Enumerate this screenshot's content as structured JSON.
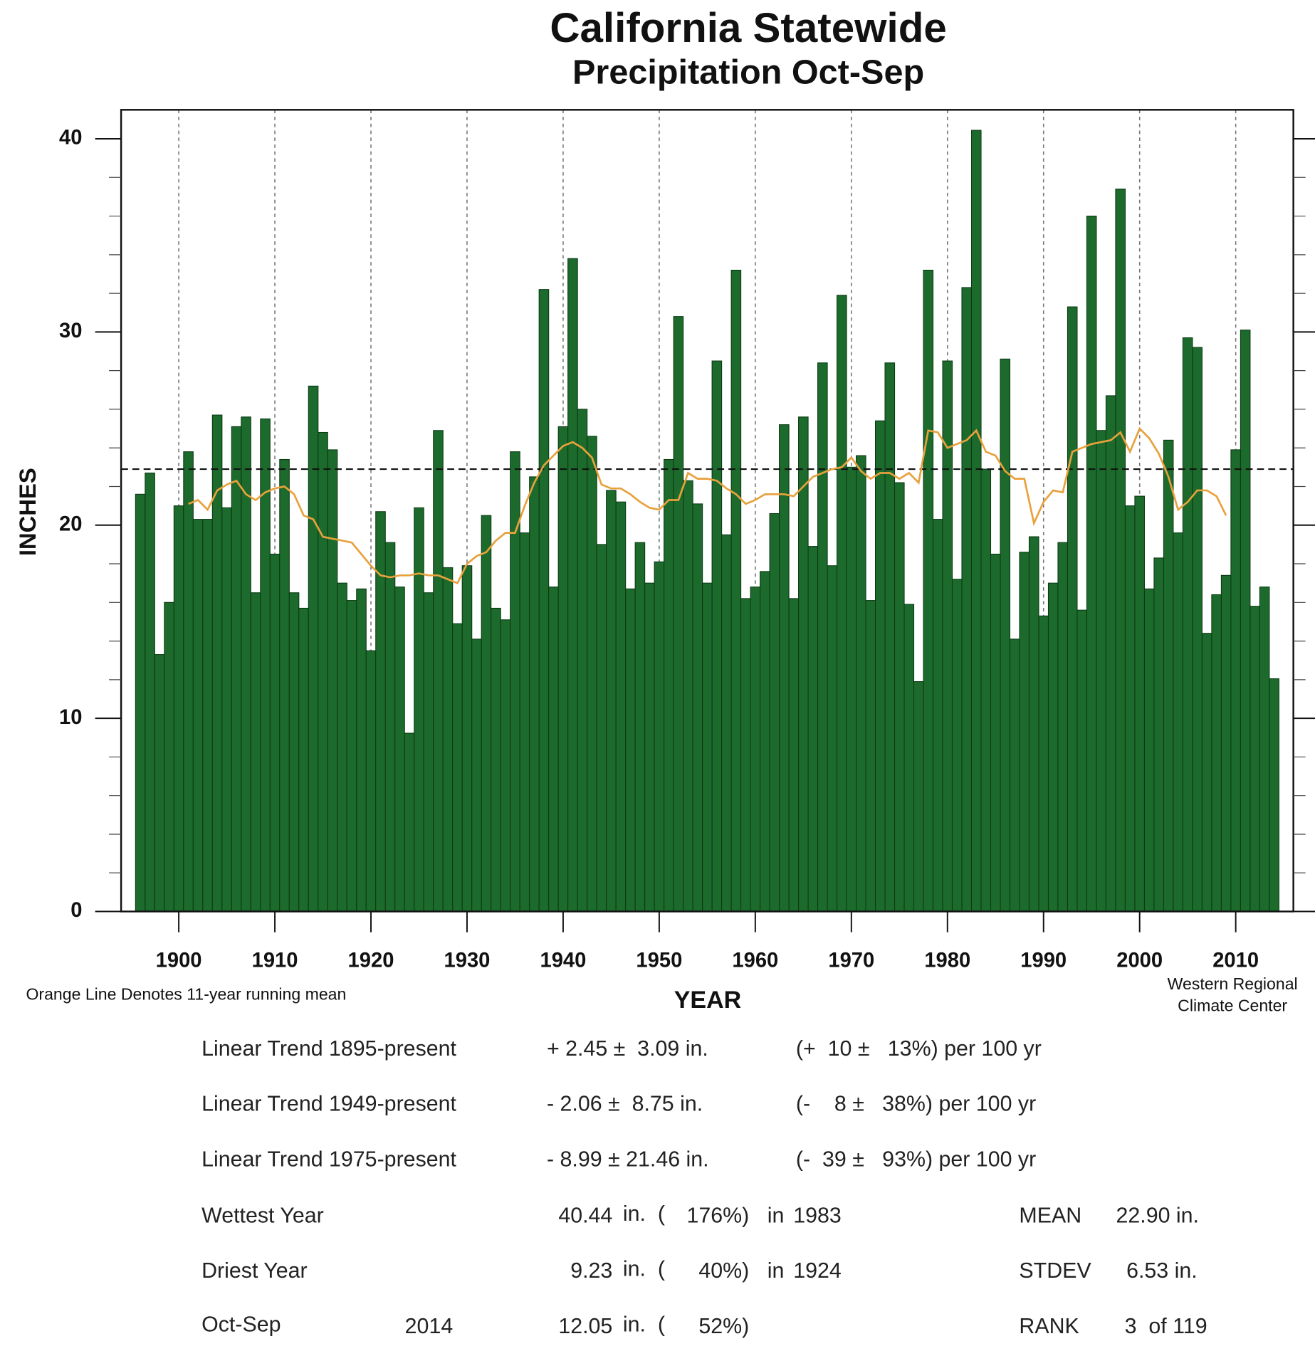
{
  "chart_data": {
    "type": "bar",
    "title": "California Statewide",
    "subtitle": "Precipitation  Oct-Sep",
    "ylabel": "INCHES",
    "xlabel": "YEAR",
    "note": "Orange Line Denotes 11-year running mean",
    "credit": [
      "Western Regional",
      "Climate Center"
    ],
    "x": [
      1896,
      1897,
      1898,
      1899,
      1900,
      1901,
      1902,
      1903,
      1904,
      1905,
      1906,
      1907,
      1908,
      1909,
      1910,
      1911,
      1912,
      1913,
      1914,
      1915,
      1916,
      1917,
      1918,
      1919,
      1920,
      1921,
      1922,
      1923,
      1924,
      1925,
      1926,
      1927,
      1928,
      1929,
      1930,
      1931,
      1932,
      1933,
      1934,
      1935,
      1936,
      1937,
      1938,
      1939,
      1940,
      1941,
      1942,
      1943,
      1944,
      1945,
      1946,
      1947,
      1948,
      1949,
      1950,
      1951,
      1952,
      1953,
      1954,
      1955,
      1956,
      1957,
      1958,
      1959,
      1960,
      1961,
      1962,
      1963,
      1964,
      1965,
      1966,
      1967,
      1968,
      1969,
      1970,
      1971,
      1972,
      1973,
      1974,
      1975,
      1976,
      1977,
      1978,
      1979,
      1980,
      1981,
      1982,
      1983,
      1984,
      1985,
      1986,
      1987,
      1988,
      1989,
      1990,
      1991,
      1992,
      1993,
      1994,
      1995,
      1996,
      1997,
      1998,
      1999,
      2000,
      2001,
      2002,
      2003,
      2004,
      2005,
      2006,
      2007,
      2008,
      2009,
      2010,
      2011,
      2012,
      2013,
      2014
    ],
    "values": [
      21.6,
      22.7,
      13.3,
      16.0,
      21.0,
      23.8,
      20.3,
      20.3,
      25.7,
      20.9,
      25.1,
      25.6,
      16.5,
      25.5,
      18.5,
      23.4,
      16.5,
      15.7,
      27.2,
      24.8,
      23.9,
      17.0,
      16.1,
      16.7,
      13.5,
      20.7,
      19.1,
      16.8,
      9.23,
      20.9,
      16.5,
      24.9,
      17.8,
      14.9,
      17.9,
      14.1,
      20.5,
      15.7,
      15.1,
      23.8,
      19.6,
      22.5,
      32.2,
      16.8,
      25.1,
      33.8,
      26.0,
      24.6,
      19.0,
      21.8,
      21.2,
      16.7,
      19.1,
      17.0,
      18.1,
      23.4,
      30.8,
      22.3,
      21.1,
      17.0,
      28.5,
      19.5,
      33.2,
      16.2,
      16.8,
      17.6,
      20.6,
      25.2,
      16.2,
      25.6,
      18.9,
      28.4,
      17.9,
      31.9,
      23.0,
      23.6,
      16.1,
      25.4,
      28.4,
      22.2,
      15.9,
      11.9,
      33.2,
      20.3,
      28.5,
      17.2,
      32.3,
      40.44,
      22.9,
      18.5,
      28.6,
      14.1,
      18.6,
      19.4,
      15.3,
      17.0,
      19.1,
      31.3,
      15.6,
      36.0,
      24.9,
      26.7,
      37.4,
      21.0,
      21.5,
      16.7,
      18.3,
      24.4,
      19.6,
      29.7,
      29.2,
      14.4,
      16.4,
      17.4,
      23.9,
      30.1,
      15.8,
      16.8,
      12.05
    ],
    "color": "#1d6b2c",
    "running_mean": {
      "color": "#e8a13c",
      "values": [
        null,
        null,
        null,
        null,
        null,
        21.1,
        21.3,
        20.8,
        21.8,
        22.1,
        22.3,
        21.6,
        21.3,
        21.7,
        21.9,
        22.0,
        21.6,
        20.5,
        20.3,
        19.4,
        19.3,
        19.2,
        19.1,
        18.5,
        17.9,
        17.4,
        17.3,
        17.4,
        17.4,
        17.5,
        17.4,
        17.4,
        17.2,
        17.0,
        18.0,
        18.4,
        18.6,
        19.2,
        19.6,
        19.6,
        21.0,
        22.2,
        23.1,
        23.6,
        24.1,
        24.3,
        24.0,
        23.5,
        22.1,
        21.9,
        21.9,
        21.6,
        21.2,
        20.9,
        20.8,
        21.3,
        21.3,
        22.7,
        22.4,
        22.4,
        22.3,
        21.9,
        21.6,
        21.1,
        21.3,
        21.6,
        21.6,
        21.6,
        21.5,
        22.0,
        22.5,
        22.7,
        22.9,
        23.0,
        23.5,
        22.8,
        22.4,
        22.7,
        22.7,
        22.4,
        22.7,
        22.2,
        24.9,
        24.8,
        24.0,
        24.2,
        24.4,
        24.9,
        23.8,
        23.6,
        22.8,
        22.4,
        22.4,
        20.1,
        21.2,
        21.8,
        21.7,
        23.8,
        24.0,
        24.2,
        24.3,
        24.4,
        24.8,
        23.8,
        25.0,
        24.5,
        23.7,
        22.5,
        20.8,
        21.2,
        21.8,
        21.8,
        21.5,
        20.5,
        null,
        null,
        null,
        null,
        null
      ]
    },
    "mean": {
      "value": 22.9,
      "label": "22.90 in."
    },
    "xlim": [
      1894,
      2016
    ],
    "xticks": [
      1900,
      1910,
      1920,
      1930,
      1940,
      1950,
      1960,
      1970,
      1980,
      1990,
      2000,
      2010
    ],
    "ylim": [
      0,
      41.5
    ],
    "yticks": [
      0,
      10,
      20,
      30,
      40
    ],
    "yminorticks": [
      2,
      4,
      6,
      8,
      12,
      14,
      16,
      18,
      22,
      24,
      26,
      28,
      32,
      34,
      36,
      38
    ],
    "grid": true,
    "stats": {
      "trends": [
        {
          "label": "Linear Trend 1895-present",
          "change": "+ 2.45 ±  3.09 in.",
          "percent": "(+  10 ±   13%) per 100 yr"
        },
        {
          "label": "Linear Trend 1949-present",
          "change": "- 2.06 ±  8.75 in.",
          "percent": "(-    8 ±   38%) per 100 yr"
        },
        {
          "label": "Linear Trend 1975-present",
          "change": "- 8.99 ± 21.46 in.",
          "percent": "(-  39 ±   93%) per 100 yr"
        }
      ],
      "wettest": {
        "label": "Wettest Year",
        "unit": "in.  (",
        "percent": "176%)",
        "in": "in"
      },
      "driest": {
        "label": "Driest Year",
        "unit": "in.  (",
        "percent": "40%)",
        "in": "in"
      },
      "current": {
        "label": "Oct-Sep",
        "unit": "in.  (",
        "percent": "52%)"
      },
      "mean_label": "MEAN",
      "stdev_label": "STDEV",
      "stdev": "6.53 in.",
      "rank_label": "RANK",
      "rank": "3  of 119"
    }
  }
}
